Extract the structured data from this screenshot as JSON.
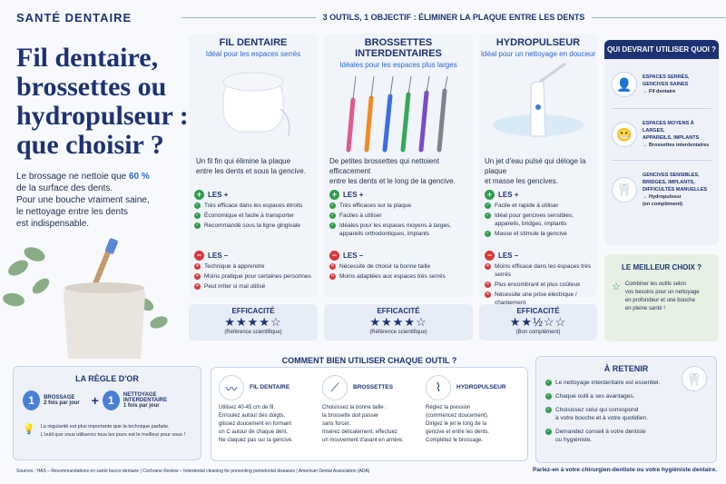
{
  "brand": "SANTÉ DENTAIRE",
  "title_lines": [
    "Fil dentaire,",
    "brossettes ou",
    "hydropulseur :",
    "que choisir ?"
  ],
  "intro": {
    "line1_pre": "Le brossage ne nettoie que ",
    "line1_pct": "60 %",
    "line2": "de la surface des dents.",
    "line3": "Pour une bouche vraiment saine,",
    "line4": "le nettoyage entre les dents",
    "line5": "est indispensable."
  },
  "banner": "3 OUTILS, 1 OBJECTIF : ÉLIMINER LA PLAQUE ENTRE LES DENTS",
  "pros_label": "LES +",
  "cons_label": "LES –",
  "effic_label": "EFFICACITÉ",
  "tools": [
    {
      "name": "FIL DENTAIRE",
      "subtitle": "Idéal pour les espaces serrés",
      "desc1": "Un fil fin qui élimine la plaque",
      "desc2": "entre les dents et sous la gencive.",
      "pros": [
        "Très efficace dans les espaces étroits",
        "Économique et facile à transporter",
        "Recommandé sous la ligne gingivale"
      ],
      "cons": [
        "Technique à apprendre",
        "Moins pratique pour certaines personnes",
        "Peut irriter si mal utilisé"
      ],
      "stars": "★★★★☆",
      "rating_note": "(Référence scientifique)"
    },
    {
      "name": "BROSSETTES INTERDENTAIRES",
      "subtitle": "Idéales pour les espaces plus larges",
      "desc1": "De petites brossettes qui nettoient efficacement",
      "desc2": "entre les dents et le long de la gencive.",
      "pros": [
        "Très efficaces sur la plaque",
        "Faciles à utiliser",
        "Idéales pour les espaces moyens à larges, appareils orthodontiques, implants"
      ],
      "cons": [
        "Nécessite de choisir la bonne taille",
        "Moins adaptées aux espaces très serrés"
      ],
      "stars": "★★★★☆",
      "rating_note": "(Référence scientifique)"
    },
    {
      "name": "HYDROPULSEUR",
      "subtitle": "Idéal pour un nettoyage en douceur",
      "desc1": "Un jet d'eau pulsé qui déloge la plaque",
      "desc2": "et masse les gencives.",
      "pros": [
        "Facile et rapide à utiliser",
        "Idéal pour gencives sensibles, appareils, bridges, implants",
        "Masse et stimule la gencive"
      ],
      "cons": [
        "Moins efficace dans les espaces très serrés",
        "Plus encombrant et plus coûteux",
        "Nécessite une prise électrique / chargement"
      ],
      "stars": "★★½☆☆",
      "rating_note": "(Bon complément)"
    }
  ],
  "sidebar": {
    "title": "QUI DEVRAIT UTILISER QUOI ?",
    "rows": [
      {
        "l1": "ESPACES SERRÉS,",
        "l2": "GENCIVES SAINES",
        "l3": "",
        "l4": "",
        "arrow": "→ Fil dentaire",
        "icon": "person-icon"
      },
      {
        "l1": "ESPACES MOYENS À LARGES,",
        "l2": "APPAREILS, IMPLANTS",
        "l3": "",
        "l4": "",
        "arrow": "→ Brossettes interdentaires",
        "icon": "braces-icon"
      },
      {
        "l1": "GENCIVES SENSIBLES,",
        "l2": "BRIDGES, IMPLANTS,",
        "l3": "DIFFICULTÉS MANUELLES",
        "l4": "(en complément)",
        "arrow": "→ Hydropulseur",
        "icon": "tooth-icon"
      }
    ]
  },
  "best": {
    "title": "LE MEILLEUR CHOIX ?",
    "l1": "Combiner les outils selon",
    "l2": "vos besoins pour un nettoyage",
    "l3": "en profondeur et une bouche",
    "l4": "en pleine santé !"
  },
  "rule": {
    "title": "LA RÈGLE D'OR",
    "n1": "1",
    "t1": "BROSSAGE",
    "s1": "2 fois par jour",
    "plus": "+",
    "n2": "1",
    "t2": "NETTOYAGE INTERDENTAIRE",
    "s2": "1 fois par jour",
    "note1": "La régularité est plus importante que la technique parfaite.",
    "note2": "L'outil que vous utiliserez tous les jours est le meilleur pour vous !"
  },
  "how": {
    "title": "COMMENT BIEN UTILISER CHAQUE OUTIL ?",
    "items": [
      {
        "name": "FIL DENTAIRE",
        "lines": [
          "Utilisez 40-45 cm de fil.",
          "Enroulez autour des doigts,",
          "glissez doucement en formant",
          "un C autour de chaque dent.",
          "Ne claquez pas sur la gencive."
        ]
      },
      {
        "name": "BROSSETTES",
        "lines": [
          "Choisissez la bonne taille :",
          "la brossette doit passer",
          "sans forcer.",
          "Insérez délicatement, effectuez",
          "un mouvement d'avant en arrière."
        ]
      },
      {
        "name": "HYDROPULSEUR",
        "lines": [
          "Réglez la pression",
          "(commencez doucement).",
          "Dirigez le jet le long de la",
          "gencive et entre les dents.",
          "Complétez le brossage."
        ]
      }
    ]
  },
  "retain": {
    "title": "À RETENIR",
    "items": [
      [
        "Le nettoyage interdentaire est essentiel."
      ],
      [
        "Chaque outil a ses avantages."
      ],
      [
        "Choisissez celui qui correspond",
        "à votre bouche et à votre quotidien."
      ],
      [
        "Demandez conseil à votre dentiste",
        "ou hygiéniste."
      ]
    ]
  },
  "sources": "Sources : HAS – Recommandations en santé bucco-dentaire | Cochrane Review – Interdental cleaning for preventing periodontal diseases | American Dental Association (ADA)",
  "footer_cta": "Parlez-en à votre chirurgien-dentiste ou votre hygiéniste dentaire."
}
